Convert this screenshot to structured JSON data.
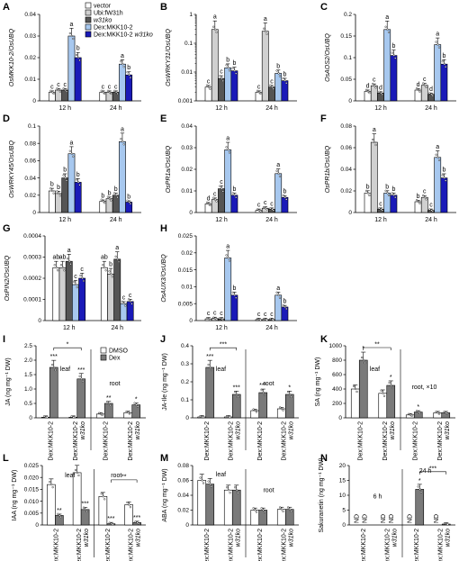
{
  "legend_top": {
    "items": [
      {
        "label": "vector",
        "color": "#ffffff"
      },
      {
        "label": "Ubi:fW31h",
        "color": "#d0d0d0"
      },
      {
        "label": "w31ko",
        "color": "#555555",
        "italic": true
      },
      {
        "label": "Dex:MKK10-2",
        "color": "#a7c8ef"
      },
      {
        "label": "Dex:MKK10-2 w31ko",
        "color": "#1a1ab8",
        "italic_part": "w31ko"
      }
    ]
  },
  "legend_dex": {
    "items": [
      {
        "label": "DMSO",
        "color": "#ffffff"
      },
      {
        "label": "Dex",
        "color": "#7a7a7a"
      }
    ]
  },
  "chart_data": [
    {
      "id": "A",
      "type": "bar",
      "ylabel": "OsMKK10-2/OsUBQ",
      "scale": "linear",
      "ylim": [
        0,
        0.04
      ],
      "yticks": [
        0,
        0.01,
        0.02,
        0.03,
        0.04
      ],
      "yticklabels": [
        "0",
        "0.01",
        "0.02",
        "0.03",
        "0.04"
      ],
      "categories": [
        "12 h",
        "24 h"
      ],
      "series": [
        {
          "name": "vector",
          "values": [
            0.004,
            0.004
          ],
          "sig": [
            "c",
            "c"
          ]
        },
        {
          "name": "Ubi:fW31h",
          "values": [
            0.005,
            0.004
          ],
          "sig": [
            "c",
            "c"
          ]
        },
        {
          "name": "w31ko",
          "values": [
            0.005,
            0.004
          ],
          "sig": [
            "c",
            "c"
          ]
        },
        {
          "name": "Dex:MKK10-2",
          "values": [
            0.03,
            0.017
          ],
          "sig": [
            "a",
            "a"
          ]
        },
        {
          "name": "Dex:MKK10-2 w31ko",
          "values": [
            0.02,
            0.012
          ],
          "sig": [
            "b",
            "b"
          ]
        }
      ]
    },
    {
      "id": "B",
      "type": "bar",
      "ylabel": "OsWRKY31/OsUBQ",
      "scale": "log",
      "ylim": [
        0.001,
        1
      ],
      "yticks": [
        0.001,
        0.01,
        0.1,
        1
      ],
      "yticklabels": [
        "0.001",
        "0.01",
        "0.1",
        "1"
      ],
      "categories": [
        "12 h",
        "24 h"
      ],
      "series": [
        {
          "name": "vector",
          "values": [
            0.003,
            0.002
          ],
          "sig": [
            "c",
            "c"
          ]
        },
        {
          "name": "Ubi:fW31h",
          "values": [
            0.3,
            0.26
          ],
          "sig": [
            "a",
            "a"
          ]
        },
        {
          "name": "w31ko",
          "values": [
            0.006,
            0.003
          ],
          "sig": [
            "c",
            "c"
          ]
        },
        {
          "name": "Dex:MKK10-2",
          "values": [
            0.014,
            0.009
          ],
          "sig": [
            "b",
            "b"
          ]
        },
        {
          "name": "Dex:MKK10-2 w31ko",
          "values": [
            0.011,
            0.005
          ],
          "sig": [
            "b",
            "b"
          ]
        }
      ]
    },
    {
      "id": "C",
      "type": "bar",
      "ylabel": "OsAOS2/OsUBQ",
      "scale": "linear",
      "ylim": [
        0,
        0.2
      ],
      "yticks": [
        0,
        0.05,
        0.1,
        0.15,
        0.2
      ],
      "yticklabels": [
        "0",
        "0.05",
        "0.1",
        "0.15",
        "0.2"
      ],
      "categories": [
        "12 h",
        "24 h"
      ],
      "series": [
        {
          "name": "vector",
          "values": [
            0.022,
            0.025
          ],
          "sig": [
            "d",
            "d"
          ]
        },
        {
          "name": "Ubi:fW31h",
          "values": [
            0.035,
            0.036
          ],
          "sig": [
            "c",
            "c"
          ]
        },
        {
          "name": "w31ko",
          "values": [
            0.018,
            0.015
          ],
          "sig": [
            "d",
            "d"
          ]
        },
        {
          "name": "Dex:MKK10-2",
          "values": [
            0.165,
            0.13
          ],
          "sig": [
            "a",
            "a"
          ]
        },
        {
          "name": "Dex:MKK10-2 w31ko",
          "values": [
            0.105,
            0.085
          ],
          "sig": [
            "b",
            "b"
          ]
        }
      ]
    },
    {
      "id": "D",
      "type": "bar",
      "ylabel": "OsWRKY45/OsUBQ",
      "scale": "linear",
      "ylim": [
        0,
        0.1
      ],
      "yticks": [
        0,
        0.02,
        0.04,
        0.06,
        0.08,
        0.1
      ],
      "yticklabels": [
        "0",
        "0.02",
        "0.04",
        "0.06",
        "0.08",
        "0.1"
      ],
      "categories": [
        "12 h",
        "24 h"
      ],
      "series": [
        {
          "name": "vector",
          "values": [
            0.025,
            0.013
          ],
          "sig": [
            "b",
            "b"
          ]
        },
        {
          "name": "Ubi:fW31h",
          "values": [
            0.022,
            0.016
          ],
          "sig": [
            "b",
            "b"
          ]
        },
        {
          "name": "w31ko",
          "values": [
            0.04,
            0.02
          ],
          "sig": [
            "b",
            "b"
          ]
        },
        {
          "name": "Dex:MKK10-2",
          "values": [
            0.068,
            0.082
          ],
          "sig": [
            "a",
            "a"
          ]
        },
        {
          "name": "Dex:MKK10-2 w31ko",
          "values": [
            0.035,
            0.012
          ],
          "sig": [
            "b",
            "b"
          ]
        }
      ]
    },
    {
      "id": "E",
      "type": "bar",
      "ylabel": "OsPR1a/OsUBQ",
      "scale": "linear",
      "ylim": [
        0,
        0.04
      ],
      "yticks": [
        0,
        0.01,
        0.02,
        0.03,
        0.04
      ],
      "yticklabels": [
        "0",
        "0.01",
        "0.02",
        "0.03",
        "0.04"
      ],
      "categories": [
        "12 h",
        "24 h"
      ],
      "series": [
        {
          "name": "vector",
          "values": [
            0.004,
            0.001
          ],
          "sig": [
            "d",
            "c"
          ]
        },
        {
          "name": "Ubi:fW31h",
          "values": [
            0.006,
            0.002
          ],
          "sig": [
            "c",
            "c"
          ]
        },
        {
          "name": "w31ko",
          "values": [
            0.011,
            0.0015
          ],
          "sig": [
            "c",
            "c"
          ]
        },
        {
          "name": "Dex:MKK10-2",
          "values": [
            0.029,
            0.018
          ],
          "sig": [
            "a",
            "a"
          ]
        },
        {
          "name": "Dex:MKK10-2 w31ko",
          "values": [
            0.008,
            0.007
          ],
          "sig": [
            "b",
            "b"
          ]
        }
      ]
    },
    {
      "id": "F",
      "type": "bar",
      "ylabel": "OsPR1b/OsUBQ",
      "scale": "linear",
      "ylim": [
        0,
        0.08
      ],
      "yticks": [
        0,
        0.02,
        0.04,
        0.06,
        0.08
      ],
      "yticklabels": [
        "0",
        "0.02",
        "0.04",
        "0.06",
        "0.08"
      ],
      "categories": [
        "12 h",
        "24 h"
      ],
      "series": [
        {
          "name": "vector",
          "values": [
            0.018,
            0.01
          ],
          "sig": [
            "b",
            "b"
          ]
        },
        {
          "name": "Ubi:fW31h",
          "values": [
            0.065,
            0.014
          ],
          "sig": [
            "a",
            "c"
          ]
        },
        {
          "name": "w31ko",
          "values": [
            0.003,
            0.002
          ],
          "sig": [
            "c",
            "c"
          ]
        },
        {
          "name": "Dex:MKK10-2",
          "values": [
            0.018,
            0.051
          ],
          "sig": [
            "b",
            "a"
          ]
        },
        {
          "name": "Dex:MKK10-2 w31ko",
          "values": [
            0.016,
            0.032
          ],
          "sig": [
            "b",
            "b"
          ]
        }
      ]
    },
    {
      "id": "G",
      "type": "bar",
      "ylabel": "OsPIN2/OsUBQ",
      "scale": "linear",
      "ylim": [
        0,
        0.0004
      ],
      "yticks": [
        0,
        0.0001,
        0.0002,
        0.0003,
        0.0004
      ],
      "yticklabels": [
        "0",
        "0.0001",
        "0.0002",
        "0.0003",
        "0.0004"
      ],
      "categories": [
        "12 h",
        "24 h"
      ],
      "series": [
        {
          "name": "vector",
          "values": [
            0.00025,
            0.00025
          ],
          "sig": [
            "ab",
            "ab"
          ]
        },
        {
          "name": "Ubi:fW31h",
          "values": [
            0.00025,
            0.00022
          ],
          "sig": [
            "ab",
            "b"
          ]
        },
        {
          "name": "w31ko",
          "values": [
            0.00028,
            0.00029
          ],
          "sig": [
            "a",
            "a"
          ]
        },
        {
          "name": "Dex:MKK10-2",
          "values": [
            0.00017,
            8e-05
          ],
          "sig": [
            "c",
            "c"
          ]
        },
        {
          "name": "Dex:MKK10-2 w31ko",
          "values": [
            0.0002,
            9e-05
          ],
          "sig": [
            "c",
            "c"
          ]
        }
      ]
    },
    {
      "id": "H",
      "type": "bar",
      "ylabel": "OsAUX3/OsUBQ",
      "scale": "linear",
      "ylim": [
        0,
        0.025
      ],
      "yticks": [
        0,
        0.005,
        0.01,
        0.015,
        0.02,
        0.025
      ],
      "yticklabels": [
        "0",
        "0.005",
        "0.01",
        "0.015",
        "0.02",
        "0.025"
      ],
      "categories": [
        "12 h",
        "24 h"
      ],
      "series": [
        {
          "name": "vector",
          "values": [
            0.0005,
            0.0003
          ],
          "sig": [
            "c",
            "c"
          ]
        },
        {
          "name": "Ubi:fW31h",
          "values": [
            0.0006,
            0.0003
          ],
          "sig": [
            "c",
            "c"
          ]
        },
        {
          "name": "w31ko",
          "values": [
            0.0005,
            0.0003
          ],
          "sig": [
            "c",
            "c"
          ]
        },
        {
          "name": "Dex:MKK10-2",
          "values": [
            0.0185,
            0.0075
          ],
          "sig": [
            "a",
            "a"
          ]
        },
        {
          "name": "Dex:MKK10-2 w31ko",
          "values": [
            0.0075,
            0.004
          ],
          "sig": [
            "b",
            "b"
          ]
        }
      ]
    },
    {
      "id": "I",
      "type": "bar",
      "ylabel": "JA (ng mg⁻¹ DW)",
      "scale": "linear",
      "ylim": [
        0,
        2.5
      ],
      "yticks": [
        0,
        0.5,
        1,
        1.5,
        2,
        2.5
      ],
      "yticklabels": [
        "0",
        "0.5",
        "1.0",
        "1.5",
        "2.0",
        "2.5"
      ],
      "categories": [
        "Dex:MKK10-2",
        "Dex:MKK10-2 w31ko",
        "Dex:MKK10-2",
        "Dex:MKK10-2 w31ko"
      ],
      "group_labels": [
        "leaf",
        "root"
      ],
      "series": [
        {
          "name": "DMSO",
          "values": [
            0.02,
            0.02,
            0.13,
            0.18
          ],
          "sig": [
            "",
            "",
            "",
            ""
          ]
        },
        {
          "name": "Dex",
          "values": [
            1.75,
            1.35,
            0.5,
            0.45
          ],
          "sig": [
            "***",
            "***",
            "**",
            "*"
          ]
        }
      ],
      "bracket": {
        "from": 0,
        "to": 1,
        "label": "*"
      }
    },
    {
      "id": "J",
      "type": "bar",
      "ylabel": "JA-Ile (ng mg⁻¹ DW)",
      "scale": "linear",
      "ylim": [
        0,
        0.4
      ],
      "yticks": [
        0,
        0.1,
        0.2,
        0.3,
        0.4
      ],
      "yticklabels": [
        "0",
        "0.1",
        "0.2",
        "0.3",
        "0.4"
      ],
      "categories": [
        "Dex:MKK10-2",
        "Dex:MKK10-2 w31ko",
        "Dex:MKK10-2",
        "Dex:MKK10-2 w31ko"
      ],
      "group_labels": [
        "leaf",
        "root"
      ],
      "series": [
        {
          "name": "DMSO",
          "values": [
            0.005,
            0.005,
            0.04,
            0.05
          ],
          "sig": [
            "",
            "",
            "",
            ""
          ]
        },
        {
          "name": "Dex",
          "values": [
            0.28,
            0.13,
            0.14,
            0.13
          ],
          "sig": [
            "***",
            "***",
            "***",
            "*"
          ]
        }
      ],
      "bracket": {
        "from": 0,
        "to": 1,
        "label": "***"
      }
    },
    {
      "id": "K",
      "type": "bar",
      "ylabel": "SA (ng mg⁻¹ DW)",
      "scale": "linear",
      "ylim": [
        0,
        1000
      ],
      "yticks": [
        0,
        200,
        400,
        600,
        800,
        1000
      ],
      "yticklabels": [
        "0",
        "200",
        "400",
        "600",
        "800",
        "1000"
      ],
      "categories": [
        "Dex:MKK10-2",
        "Dex:MKK10-2 w31ko",
        "Dex:MKK10-2",
        "Dex:MKK10-2 w31ko"
      ],
      "group_labels": [
        "leaf",
        "root, ×10"
      ],
      "series": [
        {
          "name": "DMSO",
          "values": [
            400,
            340,
            40,
            70
          ],
          "sig": [
            "",
            "",
            "",
            ""
          ]
        },
        {
          "name": "Dex",
          "values": [
            800,
            450,
            80,
            70
          ],
          "sig": [
            "*",
            "*",
            "*",
            ""
          ]
        }
      ],
      "bracket": {
        "from": 0,
        "to": 1,
        "label": "**"
      }
    },
    {
      "id": "L",
      "type": "bar",
      "ylabel": "IAA (ng mg⁻¹ DW)",
      "scale": "linear",
      "ylim": [
        0,
        0.025
      ],
      "yticks": [
        0,
        0.005,
        0.01,
        0.015,
        0.02,
        0.025
      ],
      "yticklabels": [
        "0",
        "0.005",
        "0.010",
        "0.015",
        "0.020",
        "0.025"
      ],
      "categories": [
        "Dex:MKK10-2",
        "Dex:MKK10-2 w31ko",
        "Dex:MKK10-2",
        "Dex:MKK10-2 w31ko"
      ],
      "group_labels": [
        "leaf",
        "root"
      ],
      "series": [
        {
          "name": "DMSO",
          "values": [
            0.017,
            0.022,
            0.012,
            0.0085
          ],
          "sig": [
            "",
            "",
            "",
            ""
          ]
        },
        {
          "name": "Dex",
          "values": [
            0.004,
            0.0065,
            0.0005,
            0.001
          ],
          "sig": [
            "**",
            "***",
            "***",
            "***"
          ]
        }
      ],
      "bracket": {
        "from": 2,
        "to": 3,
        "label": "**"
      }
    },
    {
      "id": "M",
      "type": "bar",
      "ylabel": "ABA (ng mg⁻¹ DW)",
      "scale": "linear",
      "ylim": [
        0,
        0.08
      ],
      "yticks": [
        0,
        0.02,
        0.04,
        0.06,
        0.08
      ],
      "yticklabels": [
        "0",
        "0.02",
        "0.04",
        "0.06",
        "0.08"
      ],
      "categories": [
        "Dex:MKK10-2",
        "Dex:MKK10-2 w31ko",
        "Dex:MKK10-2",
        "Dex:MKK10-2 w31ko"
      ],
      "group_labels": [
        "leaf",
        "root"
      ],
      "series": [
        {
          "name": "DMSO",
          "values": [
            0.06,
            0.047,
            0.02,
            0.021
          ],
          "sig": [
            "",
            "",
            "",
            ""
          ]
        },
        {
          "name": "Dex",
          "values": [
            0.055,
            0.047,
            0.02,
            0.021
          ],
          "sig": [
            "",
            "",
            "",
            ""
          ]
        }
      ]
    },
    {
      "id": "N",
      "type": "bar",
      "ylabel": "Sakuranetin (ng mg⁻¹ DW)",
      "scale": "linear",
      "ylim": [
        0,
        20
      ],
      "yticks": [
        0,
        5,
        10,
        15,
        20
      ],
      "yticklabels": [
        "0",
        "5",
        "10",
        "15",
        "20"
      ],
      "categories": [
        "Dex:MKK10-2",
        "Dex:MKK10-2 w31ko",
        "Dex:MKK10-2",
        "Dex:MKK10-2 w31ko"
      ],
      "group_labels": [
        "6 h",
        "24 h"
      ],
      "series": [
        {
          "name": "DMSO",
          "values": [
            0,
            0,
            0,
            0
          ],
          "sig": [
            "ND",
            "ND",
            "ND",
            "ND"
          ]
        },
        {
          "name": "Dex",
          "values": [
            0,
            0,
            12,
            0.3
          ],
          "sig": [
            "ND",
            "ND",
            "*",
            ""
          ]
        }
      ],
      "bracket": {
        "from": 2,
        "to": 3,
        "label": "***"
      }
    }
  ]
}
